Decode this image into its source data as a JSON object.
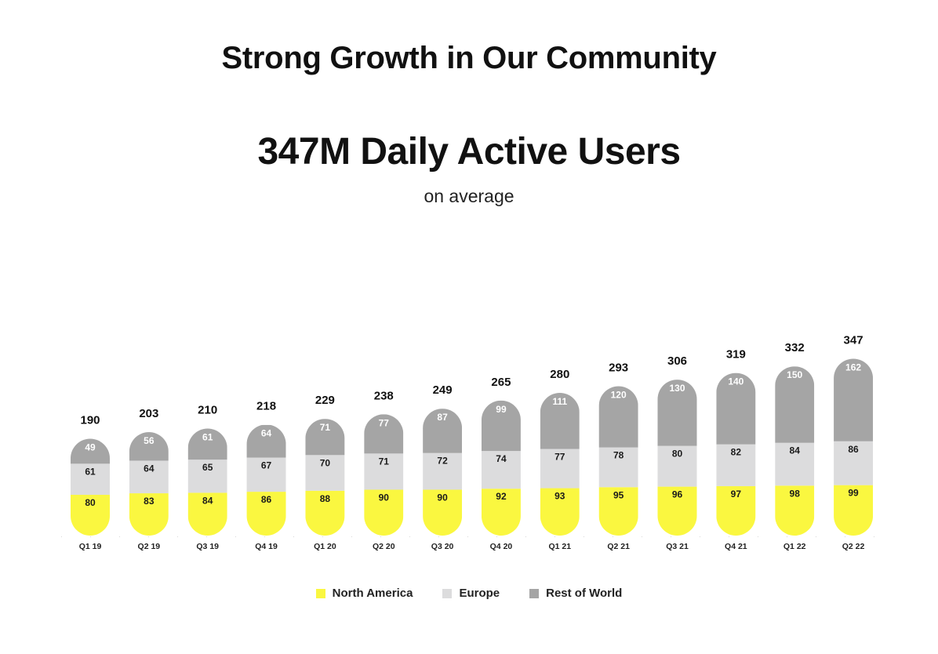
{
  "title": "Strong Growth in Our Community",
  "headline": "347M Daily Active Users",
  "subheadline": "on average",
  "colors": {
    "north_america": "#FAF740",
    "europe": "#DCDCDD",
    "rest_of_world": "#A5A5A5",
    "text": "#111111"
  },
  "chart_data": {
    "type": "bar",
    "stacked": true,
    "categories": [
      "Q1 19",
      "Q2 19",
      "Q3 19",
      "Q4 19",
      "Q1 20",
      "Q2 20",
      "Q3 20",
      "Q4 20",
      "Q1 21",
      "Q2 21",
      "Q3 21",
      "Q4 21",
      "Q1 22",
      "Q2 22"
    ],
    "series": [
      {
        "name": "North America",
        "values": [
          80,
          83,
          84,
          86,
          88,
          90,
          90,
          92,
          93,
          95,
          96,
          97,
          98,
          99
        ]
      },
      {
        "name": "Europe",
        "values": [
          61,
          64,
          65,
          67,
          70,
          71,
          72,
          74,
          77,
          78,
          80,
          82,
          84,
          86
        ]
      },
      {
        "name": "Rest of World",
        "values": [
          49,
          56,
          61,
          64,
          71,
          77,
          87,
          99,
          111,
          120,
          130,
          140,
          150,
          162
        ]
      }
    ],
    "totals": [
      190,
      203,
      210,
      218,
      229,
      238,
      249,
      265,
      280,
      293,
      306,
      319,
      332,
      347
    ],
    "title": "347M Daily Active Users",
    "subtitle": "on average",
    "ylim": [
      0,
      347
    ],
    "legend_position": "bottom-center"
  }
}
